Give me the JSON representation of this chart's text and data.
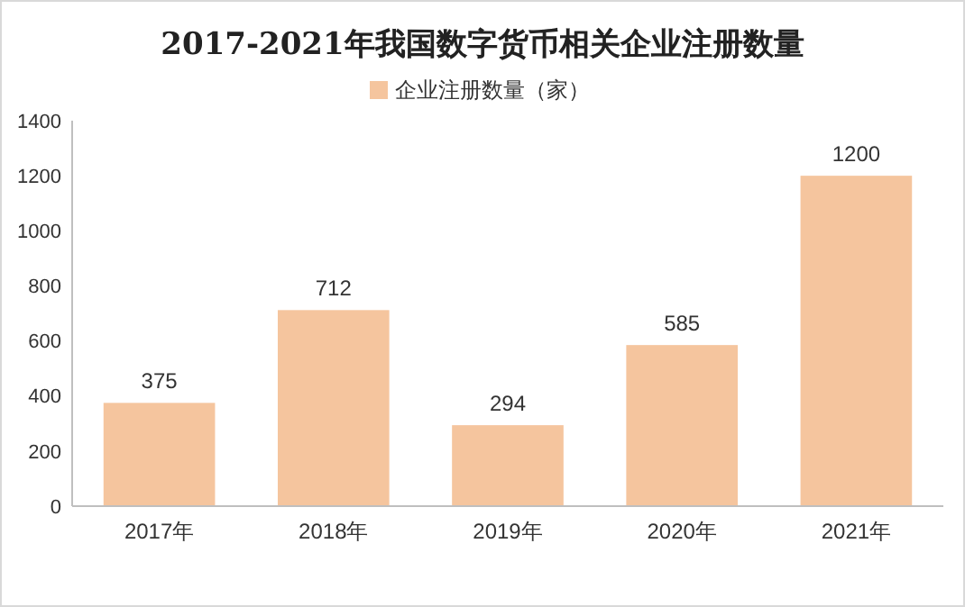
{
  "chart_data": {
    "type": "bar",
    "title": "2017-2021年我国数字货币相关企业注册数量",
    "categories": [
      "2017年",
      "2018年",
      "2019年",
      "2020年",
      "2021年"
    ],
    "series": [
      {
        "name": "企业注册数量（家）",
        "color": "#f5c59e",
        "values": [
          375,
          712,
          294,
          585,
          1200
        ]
      }
    ],
    "ylim": [
      0,
      1400
    ],
    "yticks": [
      0,
      200,
      400,
      600,
      800,
      1000,
      1200,
      1400
    ],
    "data_labels": true,
    "legend": "top",
    "grid": false
  }
}
